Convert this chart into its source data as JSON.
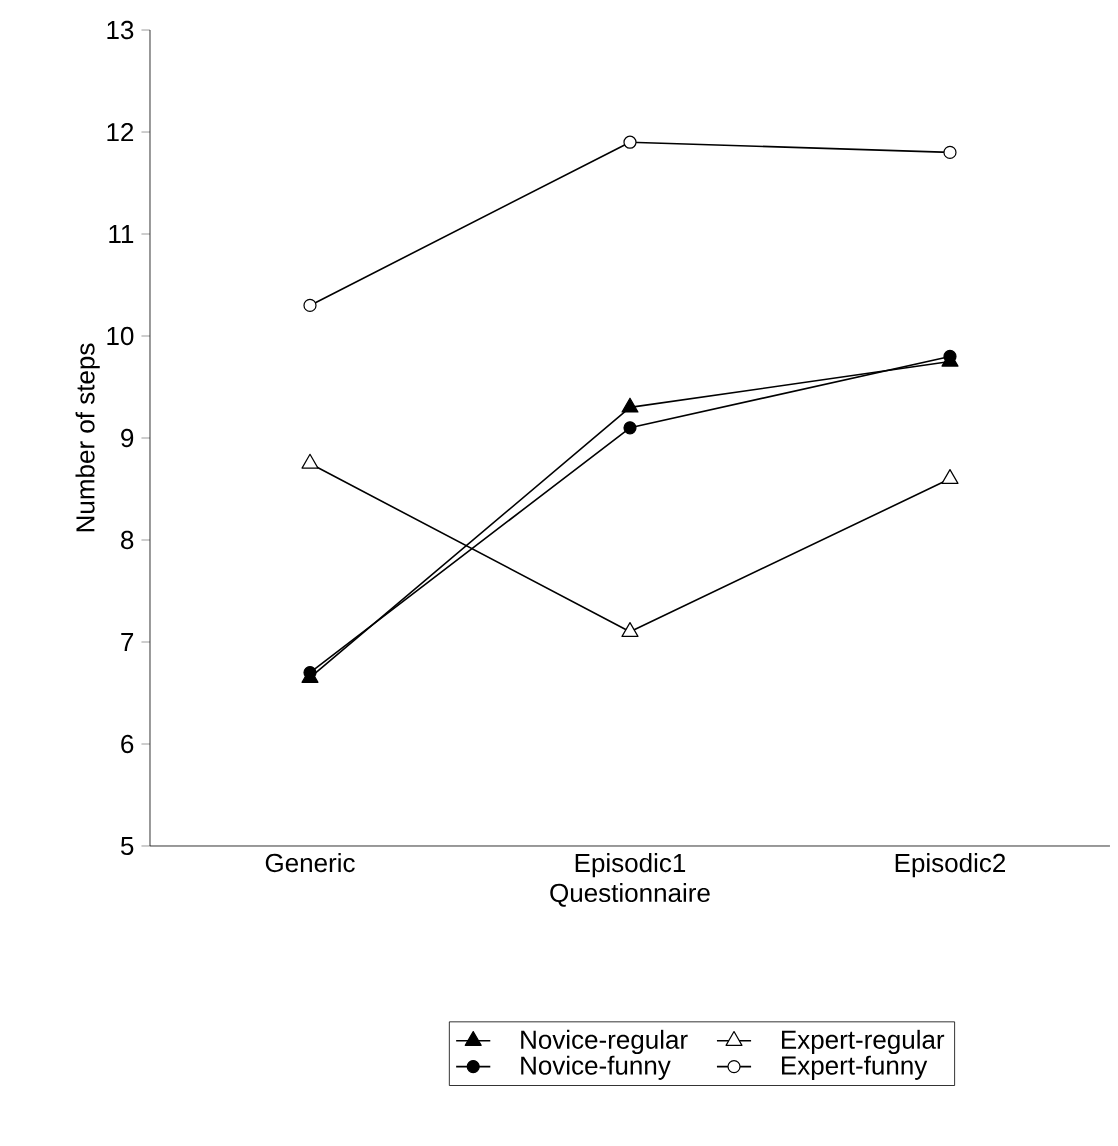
{
  "chart_data": {
    "type": "line",
    "xlabel": "Questionnaire",
    "ylabel": "Number of steps",
    "categories": [
      "Generic",
      "Episodic1",
      "Episodic2"
    ],
    "ylim": [
      5,
      13
    ],
    "yticks": [
      5,
      6,
      7,
      8,
      9,
      10,
      11,
      12,
      13
    ],
    "legend": "bottom",
    "series": [
      {
        "name": "Novice-regular",
        "color": "#000000",
        "marker": "triangle",
        "colors": [
          "#000000",
          "#000000",
          "#000000"
        ],
        "values": [
          6.65,
          9.3,
          9.75
        ]
      },
      {
        "name": "Expert-regular",
        "color": "#000000",
        "marker": "triangle",
        "colors": [
          "#ffffff",
          "#ffffff",
          "#ffffff"
        ],
        "values": [
          8.75,
          7.1,
          8.6
        ]
      },
      {
        "name": "Novice-funny",
        "color": "#000000",
        "marker": "circle",
        "colors": [
          "#000000",
          "#000000",
          "#000000"
        ],
        "values": [
          6.7,
          9.1,
          9.8
        ]
      },
      {
        "name": "Expert-funny",
        "color": "#000000",
        "marker": "circle",
        "colors": [
          "#ffffff",
          "#ffffff",
          "#ffffff"
        ],
        "values": [
          10.3,
          11.9,
          11.8
        ]
      }
    ]
  }
}
